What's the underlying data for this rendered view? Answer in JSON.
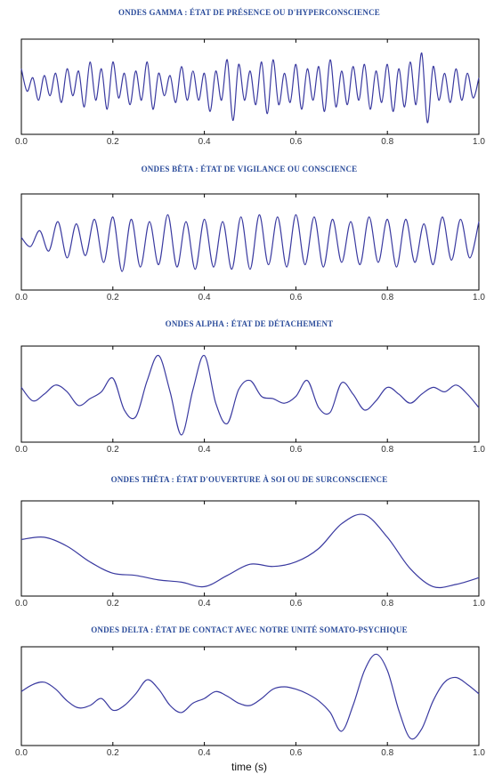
{
  "figure": {
    "xlabel": "time (s)"
  },
  "chart_data": [
    {
      "type": "line",
      "title": "ONDES GAMMA : ÉTAT DE PRÉSENCE  OU D'HYPERCONSCIENCE",
      "xlim": [
        0,
        1
      ],
      "ylim": [
        -1,
        1
      ],
      "x_ticks": [
        "0.0",
        "0.2",
        "0.4",
        "0.6",
        "0.8",
        "1.0"
      ],
      "x": [
        0,
        0.0125,
        0.025,
        0.0375,
        0.05,
        0.0625,
        0.075,
        0.0875,
        0.1,
        0.1125,
        0.125,
        0.1375,
        0.15,
        0.1625,
        0.175,
        0.1875,
        0.2,
        0.2125,
        0.225,
        0.2375,
        0.25,
        0.2625,
        0.275,
        0.2875,
        0.3,
        0.3125,
        0.325,
        0.3375,
        0.35,
        0.3625,
        0.375,
        0.3875,
        0.4,
        0.4125,
        0.425,
        0.4375,
        0.45,
        0.4625,
        0.475,
        0.4875,
        0.5,
        0.5125,
        0.525,
        0.5375,
        0.55,
        0.5625,
        0.575,
        0.5875,
        0.6,
        0.6125,
        0.625,
        0.6375,
        0.65,
        0.6625,
        0.675,
        0.6875,
        0.7,
        0.7125,
        0.725,
        0.7375,
        0.75,
        0.7625,
        0.775,
        0.7875,
        0.8,
        0.8125,
        0.825,
        0.8375,
        0.85,
        0.8625,
        0.875,
        0.8875,
        0.9,
        0.9125,
        0.925,
        0.9375,
        0.95,
        0.9625,
        0.975,
        0.9875,
        1.0
      ],
      "values": [
        0.4,
        -0.1,
        0.2,
        -0.3,
        0.25,
        -0.2,
        0.3,
        -0.35,
        0.4,
        -0.2,
        0.35,
        -0.45,
        0.55,
        -0.3,
        0.4,
        -0.5,
        0.55,
        -0.25,
        0.3,
        -0.4,
        0.35,
        -0.3,
        0.55,
        -0.5,
        0.3,
        -0.2,
        0.25,
        -0.35,
        0.45,
        -0.3,
        0.35,
        -0.3,
        0.3,
        -0.55,
        0.35,
        -0.3,
        0.6,
        -0.75,
        0.5,
        -0.3,
        0.35,
        -0.4,
        0.55,
        -0.6,
        0.6,
        -0.4,
        0.3,
        -0.35,
        0.5,
        -0.5,
        0.4,
        -0.3,
        0.45,
        -0.55,
        0.6,
        -0.45,
        0.35,
        -0.4,
        0.45,
        -0.3,
        0.5,
        -0.5,
        0.35,
        -0.35,
        0.5,
        -0.55,
        0.4,
        -0.45,
        0.55,
        -0.4,
        0.75,
        -0.8,
        0.45,
        -0.3,
        0.3,
        -0.35,
        0.4,
        -0.3,
        0.3,
        -0.25,
        0.2
      ]
    },
    {
      "type": "line",
      "title": "ONDES BÊTA  : ÉTAT DE VIGILANCE  OU CONSCIENCE",
      "xlim": [
        0,
        1
      ],
      "ylim": [
        -1,
        1
      ],
      "x_ticks": [
        "0.0",
        "0.2",
        "0.4",
        "0.6",
        "0.8",
        "1.0"
      ],
      "x": [
        0,
        0.02,
        0.04,
        0.06,
        0.08,
        0.1,
        0.12,
        0.14,
        0.16,
        0.18,
        0.2,
        0.22,
        0.24,
        0.26,
        0.28,
        0.3,
        0.32,
        0.34,
        0.36,
        0.38,
        0.4,
        0.42,
        0.44,
        0.46,
        0.48,
        0.5,
        0.52,
        0.54,
        0.56,
        0.58,
        0.6,
        0.62,
        0.64,
        0.66,
        0.68,
        0.7,
        0.72,
        0.74,
        0.76,
        0.78,
        0.8,
        0.82,
        0.84,
        0.86,
        0.88,
        0.9,
        0.92,
        0.94,
        0.96,
        0.98,
        1.0
      ],
      "values": [
        0.1,
        -0.1,
        0.25,
        -0.2,
        0.45,
        -0.35,
        0.4,
        -0.3,
        0.5,
        -0.45,
        0.55,
        -0.65,
        0.5,
        -0.55,
        0.45,
        -0.5,
        0.6,
        -0.55,
        0.45,
        -0.6,
        0.5,
        -0.55,
        0.45,
        -0.6,
        0.55,
        -0.6,
        0.6,
        -0.5,
        0.55,
        -0.55,
        0.6,
        -0.5,
        0.55,
        -0.55,
        0.5,
        -0.45,
        0.45,
        -0.5,
        0.55,
        -0.45,
        0.5,
        -0.55,
        0.5,
        -0.45,
        0.4,
        -0.5,
        0.55,
        -0.4,
        0.5,
        -0.35,
        0.45
      ]
    },
    {
      "type": "line",
      "title": "ONDES ALPHA  : ÉTAT DE DÉTACHEMENT",
      "xlim": [
        0,
        1
      ],
      "ylim": [
        -1,
        1
      ],
      "x_ticks": [
        "0.0",
        "0.2",
        "0.4",
        "0.6",
        "0.8",
        "1.0"
      ],
      "x": [
        0,
        0.025,
        0.05,
        0.075,
        0.1,
        0.125,
        0.15,
        0.175,
        0.2,
        0.225,
        0.25,
        0.275,
        0.3,
        0.325,
        0.35,
        0.375,
        0.4,
        0.425,
        0.45,
        0.475,
        0.5,
        0.525,
        0.55,
        0.575,
        0.6,
        0.625,
        0.65,
        0.675,
        0.7,
        0.725,
        0.75,
        0.775,
        0.8,
        0.825,
        0.85,
        0.875,
        0.9,
        0.925,
        0.95,
        0.975,
        1.0
      ],
      "values": [
        0.15,
        -0.15,
        0.0,
        0.2,
        0.05,
        -0.25,
        -0.1,
        0.05,
        0.35,
        -0.35,
        -0.5,
        0.3,
        0.85,
        0.05,
        -0.9,
        0.1,
        0.85,
        -0.2,
        -0.65,
        0.1,
        0.3,
        -0.05,
        -0.1,
        -0.2,
        -0.05,
        0.3,
        -0.3,
        -0.4,
        0.25,
        0.0,
        -0.35,
        -0.15,
        0.15,
        0.0,
        -0.2,
        0.0,
        0.15,
        0.05,
        0.2,
        0.0,
        -0.3
      ]
    },
    {
      "type": "line",
      "title": "ONDES THÊTA  : ÉTAT D'OUVERTURE  À SOI OU DE SURCONSCIENCE",
      "xlim": [
        0,
        1
      ],
      "ylim": [
        -1,
        1
      ],
      "x_ticks": [
        "0.0",
        "0.2",
        "0.4",
        "0.6",
        "0.8",
        "1.0"
      ],
      "x": [
        0,
        0.05,
        0.1,
        0.15,
        0.2,
        0.25,
        0.3,
        0.35,
        0.4,
        0.45,
        0.5,
        0.55,
        0.6,
        0.65,
        0.7,
        0.75,
        0.8,
        0.85,
        0.9,
        0.95,
        1.0
      ],
      "values": [
        0.2,
        0.25,
        0.05,
        -0.3,
        -0.55,
        -0.6,
        -0.7,
        -0.75,
        -0.85,
        -0.6,
        -0.35,
        -0.4,
        -0.3,
        0.0,
        0.55,
        0.75,
        0.25,
        -0.45,
        -0.85,
        -0.8,
        -0.65
      ]
    },
    {
      "type": "line",
      "title": "ONDES DELTA : ÉTAT DE CONTACT AVEC NOTRE UNITÉ SOMATO-PSYCHIQUE",
      "xlim": [
        0,
        1
      ],
      "ylim": [
        -1,
        1
      ],
      "x_ticks": [
        "0.0",
        "0.2",
        "0.4",
        "0.6",
        "0.8",
        "1.0"
      ],
      "x": [
        0,
        0.025,
        0.05,
        0.075,
        0.1,
        0.125,
        0.15,
        0.175,
        0.2,
        0.225,
        0.25,
        0.275,
        0.3,
        0.325,
        0.35,
        0.375,
        0.4,
        0.425,
        0.45,
        0.475,
        0.5,
        0.525,
        0.55,
        0.575,
        0.6,
        0.625,
        0.65,
        0.675,
        0.7,
        0.725,
        0.75,
        0.775,
        0.8,
        0.825,
        0.85,
        0.875,
        0.9,
        0.925,
        0.95,
        0.975,
        1.0
      ],
      "values": [
        0.1,
        0.25,
        0.3,
        0.15,
        -0.1,
        -0.25,
        -0.2,
        -0.05,
        -0.3,
        -0.2,
        0.05,
        0.35,
        0.15,
        -0.2,
        -0.35,
        -0.15,
        -0.05,
        0.1,
        0.0,
        -0.15,
        -0.2,
        -0.05,
        0.15,
        0.2,
        0.15,
        0.05,
        -0.1,
        -0.35,
        -0.75,
        -0.2,
        0.55,
        0.9,
        0.55,
        -0.3,
        -0.9,
        -0.7,
        -0.1,
        0.3,
        0.4,
        0.25,
        0.05
      ]
    }
  ]
}
